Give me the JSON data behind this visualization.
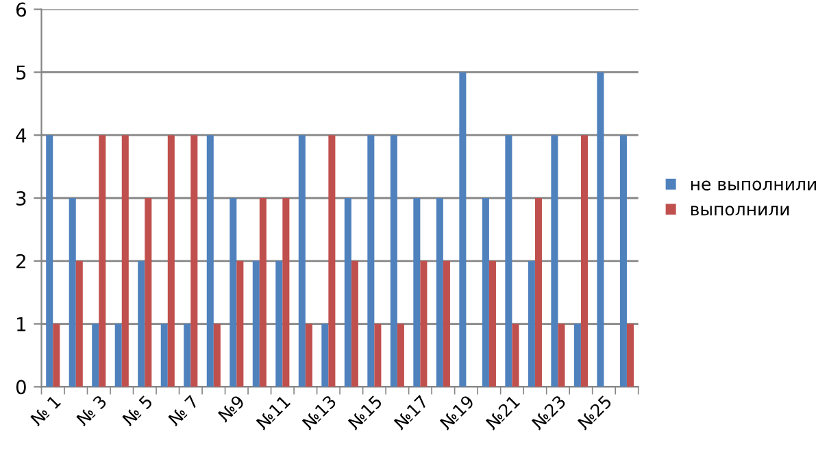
{
  "chart_data": {
    "type": "bar",
    "categories": [
      "№ 1",
      null,
      "№ 3",
      null,
      "№ 5",
      null,
      "№ 7",
      null,
      "№9",
      null,
      "№11",
      null,
      "№13",
      null,
      "№15",
      null,
      "№17",
      null,
      "№19",
      null,
      "№21",
      null,
      "№23",
      null,
      "№25",
      null
    ],
    "series": [
      {
        "name": "не выполнили",
        "color": "#4f81bd",
        "values": [
          4,
          3,
          1,
          1,
          2,
          1,
          1,
          4,
          3,
          2,
          2,
          4,
          1,
          3,
          4,
          4,
          3,
          3,
          5,
          3,
          4,
          2,
          4,
          1,
          5,
          4
        ]
      },
      {
        "name": "выполнили",
        "color": "#c0504d",
        "values": [
          1,
          2,
          4,
          4,
          3,
          4,
          4,
          1,
          2,
          3,
          3,
          1,
          4,
          2,
          1,
          1,
          2,
          2,
          0,
          2,
          1,
          3,
          1,
          4,
          0,
          1
        ]
      }
    ],
    "ylim": [
      0,
      6
    ],
    "yticks": [
      0,
      1,
      2,
      3,
      4,
      5,
      6
    ],
    "grid": "y",
    "legend": "right"
  }
}
